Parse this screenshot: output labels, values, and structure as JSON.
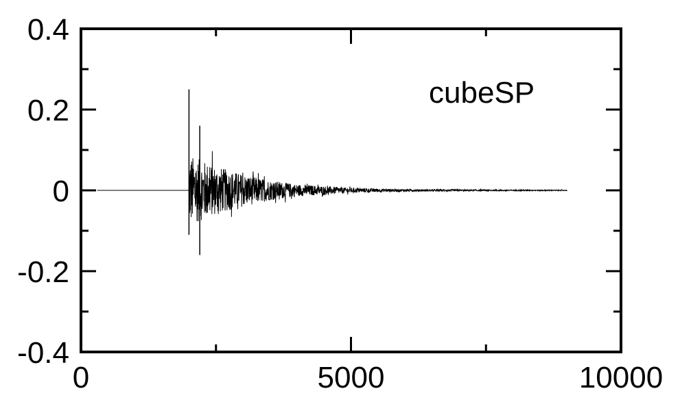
{
  "chart_data": {
    "type": "line",
    "title": "",
    "xlabel": "",
    "ylabel": "",
    "xlim": [
      0,
      10000
    ],
    "ylim": [
      -0.4,
      0.4
    ],
    "x_ticks": [
      0,
      5000,
      10000
    ],
    "x_tick_labels": [
      "0",
      "5000",
      "10000"
    ],
    "x_minor_ticks": [
      2500,
      7500
    ],
    "y_ticks": [
      0.4,
      0.2,
      0,
      -0.2,
      -0.4
    ],
    "y_tick_labels": [
      "0.4",
      "0.2",
      "0",
      "-0.2",
      "-0.4"
    ],
    "y_minor_ticks": [
      0.3,
      0.1,
      -0.1,
      -0.3
    ],
    "grid": false,
    "legend": "none",
    "annotation": "cubeSP",
    "line_color": "#000000",
    "series": [
      {
        "onset_x": 2000,
        "end_x": 9000,
        "baseline": 0,
        "peak_points": [
          {
            "x": 2000,
            "y": 0.25
          },
          {
            "x": 2000,
            "y": -0.11
          },
          {
            "x": 2200,
            "y": 0.16
          },
          {
            "x": 2200,
            "y": -0.16
          }
        ],
        "envelope": [
          {
            "x": 2050,
            "y": 0.085
          },
          {
            "x": 2500,
            "y": 0.06
          },
          {
            "x": 3000,
            "y": 0.04
          },
          {
            "x": 3500,
            "y": 0.025
          },
          {
            "x": 4000,
            "y": 0.015
          },
          {
            "x": 5000,
            "y": 0.006
          },
          {
            "x": 6000,
            "y": 0.003
          },
          {
            "x": 7000,
            "y": 0.002
          },
          {
            "x": 9000,
            "y": 0.001
          }
        ]
      }
    ]
  }
}
